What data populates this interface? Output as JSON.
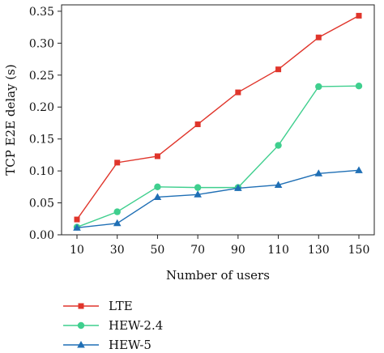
{
  "chart_data": {
    "type": "line",
    "xlabel": "Number of users",
    "ylabel": "TCP E2E delay (s)",
    "categories": [
      "10",
      "30",
      "50",
      "70",
      "90",
      "110",
      "130",
      "150"
    ],
    "ylim": [
      0,
      0.36
    ],
    "yticks": [
      "0.00",
      "0.05",
      "0.10",
      "0.15",
      "0.20",
      "0.25",
      "0.30",
      "0.35"
    ],
    "ytick_values": [
      0,
      0.05,
      0.1,
      0.15,
      0.2,
      0.25,
      0.3,
      0.35
    ],
    "grid": false,
    "legend_position": "below",
    "series": [
      {
        "name": "LTE",
        "color": "#e0352b",
        "marker": "square",
        "values": [
          0.024,
          0.113,
          0.123,
          0.173,
          0.223,
          0.259,
          0.309,
          0.343
        ]
      },
      {
        "name": "HEW-2.4",
        "color": "#3fcf8e",
        "marker": "circle",
        "values": [
          0.012,
          0.036,
          0.075,
          0.074,
          0.074,
          0.14,
          0.232,
          0.233
        ]
      },
      {
        "name": "HEW-5",
        "color": "#1f6fb5",
        "marker": "triangle",
        "values": [
          0.011,
          0.018,
          0.059,
          0.063,
          0.073,
          0.078,
          0.096,
          0.101
        ]
      }
    ]
  }
}
